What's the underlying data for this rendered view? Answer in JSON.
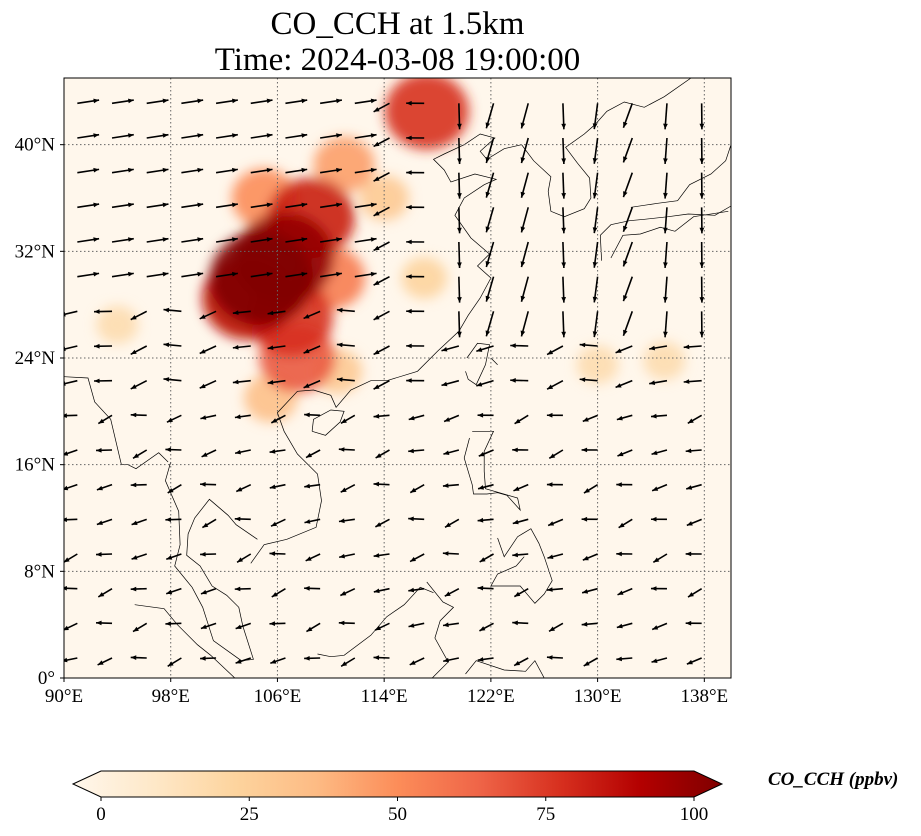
{
  "title": {
    "line1": "CO_CCH at 1.5km",
    "line2": "Time: 2024-03-08 19:00:00"
  },
  "map": {
    "projection": "PlateCarree",
    "lon_range": [
      90,
      140
    ],
    "lat_range": [
      0,
      45
    ],
    "x_ticks": [
      {
        "value": 90,
        "label": "90°E"
      },
      {
        "value": 98,
        "label": "98°E"
      },
      {
        "value": 106,
        "label": "106°E"
      },
      {
        "value": 114,
        "label": "114°E"
      },
      {
        "value": 122,
        "label": "122°E"
      },
      {
        "value": 130,
        "label": "130°E"
      },
      {
        "value": 138,
        "label": "138°E"
      }
    ],
    "y_ticks": [
      {
        "value": 0,
        "label": "0°"
      },
      {
        "value": 8,
        "label": "8°N"
      },
      {
        "value": 16,
        "label": "16°N"
      },
      {
        "value": 24,
        "label": "24°N"
      },
      {
        "value": 32,
        "label": "32°N"
      },
      {
        "value": 40,
        "label": "40°N"
      }
    ],
    "gridlines": true,
    "gridline_style": "dotted",
    "field": {
      "variable": "CO_CCH",
      "units": "ppbv",
      "colormap": "OrRd",
      "plumes": [
        {
          "lon": 104.8,
          "lat": 30.0,
          "value": 100
        },
        {
          "lon": 106.5,
          "lat": 31.5,
          "value": 95
        },
        {
          "lon": 103.8,
          "lat": 28.5,
          "value": 85
        },
        {
          "lon": 108.5,
          "lat": 34.5,
          "value": 80
        },
        {
          "lon": 107.0,
          "lat": 27.0,
          "value": 75
        },
        {
          "lon": 107.5,
          "lat": 24.0,
          "value": 65
        },
        {
          "lon": 110.0,
          "lat": 30.0,
          "value": 55
        },
        {
          "lon": 105.0,
          "lat": 36.0,
          "value": 50
        },
        {
          "lon": 117.2,
          "lat": 42.5,
          "value": 75
        },
        {
          "lon": 111.0,
          "lat": 38.5,
          "value": 45
        },
        {
          "lon": 114.0,
          "lat": 36.0,
          "value": 30
        },
        {
          "lon": 117.0,
          "lat": 30.0,
          "value": 25
        },
        {
          "lon": 105.5,
          "lat": 21.0,
          "value": 35
        },
        {
          "lon": 110.5,
          "lat": 23.0,
          "value": 30
        },
        {
          "lon": 94.0,
          "lat": 26.5,
          "value": 20
        },
        {
          "lon": 130.0,
          "lat": 23.5,
          "value": 20
        },
        {
          "lon": 135.0,
          "lat": 23.8,
          "value": 20
        }
      ],
      "coastlines": true
    },
    "wind_vectors": {
      "shown": true,
      "color": "#000000"
    }
  },
  "colorbar": {
    "min": 0,
    "max": 100,
    "ticks": [
      {
        "value": 0,
        "label": "0"
      },
      {
        "value": 25,
        "label": "25"
      },
      {
        "value": 50,
        "label": "50"
      },
      {
        "value": 75,
        "label": "75"
      },
      {
        "value": 100,
        "label": "100"
      }
    ],
    "extend": "both",
    "label": "CO_CCH (ppbv)",
    "stops": [
      "#fff7ec",
      "#fee8c8",
      "#fdd49e",
      "#fdbb84",
      "#fc8d59",
      "#ef6548",
      "#d7301f",
      "#b30000",
      "#7f0000"
    ]
  }
}
